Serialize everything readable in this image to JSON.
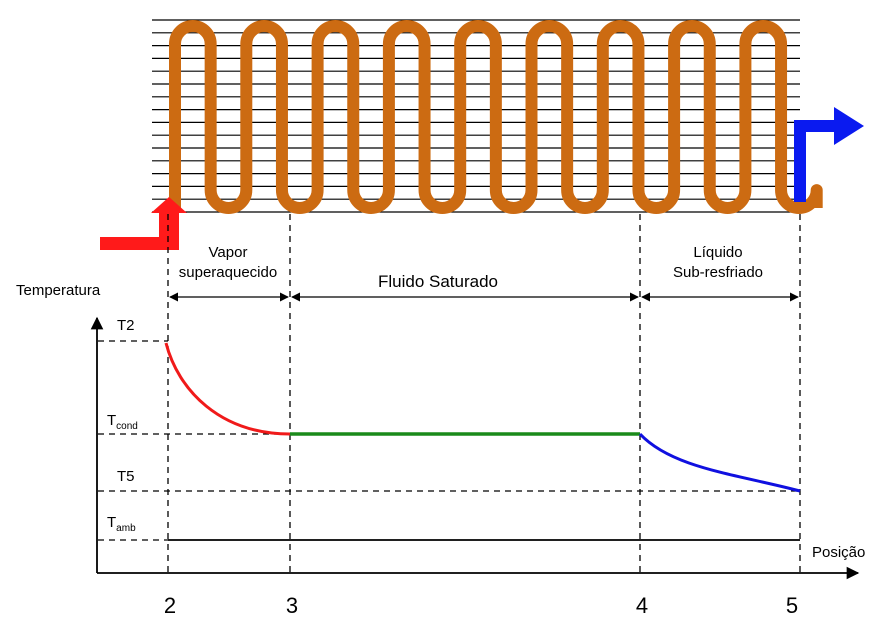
{
  "axis": {
    "y_label": "Temperatura",
    "x_label": "Posição"
  },
  "levels": {
    "t2": "T2",
    "tcond_main": "T",
    "tcond_sub": "cond",
    "t5": "T5",
    "tamb_main": "T",
    "tamb_sub": "amb"
  },
  "regions": {
    "vapor_line1": "Vapor",
    "vapor_line2": "superaquecido",
    "saturated": "Fluido Saturado",
    "liquid_line1": "Líquido",
    "liquid_line2": "Sub-resfriado"
  },
  "positions": [
    "2",
    "3",
    "4",
    "5"
  ],
  "colors": {
    "coil": "#CC6B12",
    "fins": "#000000",
    "inlet_arrow": "#FF1A1A",
    "outlet_arrow": "#0A1AF0",
    "superheated_curve": "#F01A1A",
    "saturated_line": "#1A8A1A",
    "subcooled_curve": "#1010E0"
  }
}
